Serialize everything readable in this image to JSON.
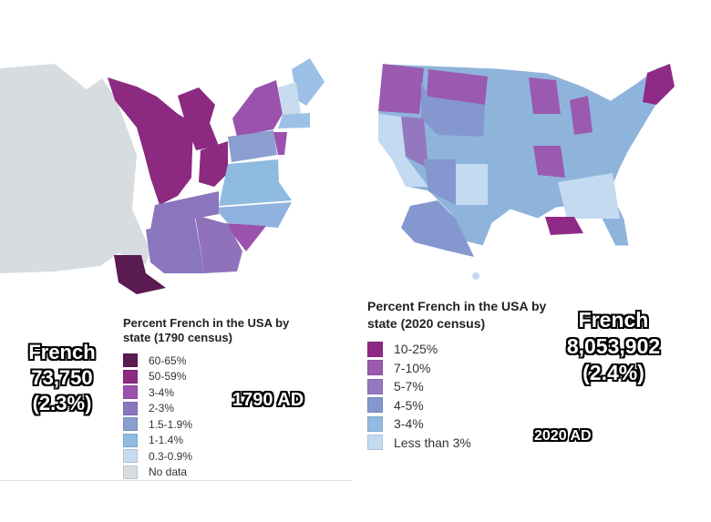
{
  "left": {
    "legend_title": "Percent French in the USA by state (1790 census)",
    "legend": [
      {
        "label": "60-65%",
        "color": "#5a1a52"
      },
      {
        "label": "50-59%",
        "color": "#8b2a80"
      },
      {
        "label": "3-4%",
        "color": "#9a52ad"
      },
      {
        "label": "2-3%",
        "color": "#8a76bd"
      },
      {
        "label": "1.5-1.9%",
        "color": "#8a9fd0"
      },
      {
        "label": "1-1.4%",
        "color": "#8fbbe0"
      },
      {
        "label": "0.3-0.9%",
        "color": "#c7dcef"
      },
      {
        "label": "No data",
        "color": "#d6dce0"
      }
    ],
    "overlay_title": "French",
    "overlay_count": "73,750",
    "overlay_pct": "(2.3%)",
    "year": "1790 AD"
  },
  "right": {
    "legend_title": "Percent French in the USA by state (2020 census)",
    "legend": [
      {
        "label": "10-25%",
        "color": "#8e2a86"
      },
      {
        "label": "7-10%",
        "color": "#9a5ab0"
      },
      {
        "label": "5-7%",
        "color": "#9478bf"
      },
      {
        "label": "4-5%",
        "color": "#8498cf"
      },
      {
        "label": "3-4%",
        "color": "#92bbe2"
      },
      {
        "label": "Less than 3%",
        "color": "#c3daf0"
      }
    ],
    "overlay_title": "French",
    "overlay_count": "8,053,902",
    "overlay_pct": "(2.4%)",
    "year": "2020 AD"
  }
}
